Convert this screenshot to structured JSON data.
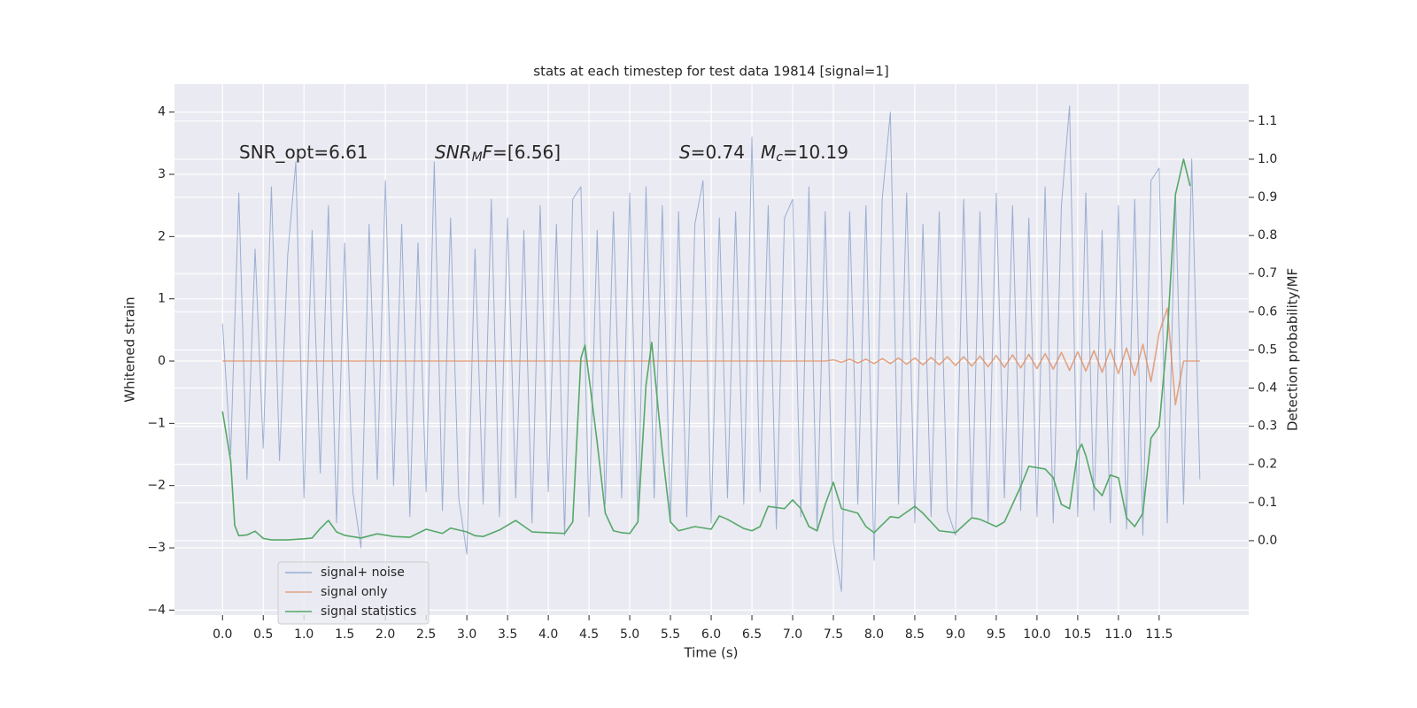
{
  "chart_data": {
    "type": "line",
    "title": "stats at each timestep for test data 19814 [signal=1]",
    "xlabel": "Time (s)",
    "ylabel": "Whitened strain",
    "y2label": "Detection probability/MF",
    "annotations": [
      [
        {
          "text": "SNR_opt=6.61"
        }
      ],
      [
        {
          "text": "SNR",
          "italic": true
        },
        {
          "text": "M",
          "italic": true,
          "sub": true
        },
        {
          "text": "F",
          "italic": true
        },
        {
          "text": "=[6.56]"
        }
      ],
      [
        {
          "text": "S",
          "italic": true
        },
        {
          "text": "=0.74"
        }
      ],
      [
        {
          "text": "M",
          "italic": true
        },
        {
          "text": "c",
          "italic": true,
          "sub": true
        },
        {
          "text": "=10.19"
        }
      ]
    ],
    "xlim": [
      -0.59,
      12.6
    ],
    "ylim": [
      -4.08,
      4.45
    ],
    "y2lim": [
      -0.195,
      1.197
    ],
    "xticks": [
      {
        "value": 0,
        "label": "0.0"
      },
      {
        "value": 0.5,
        "label": "0.5"
      },
      {
        "value": 1,
        "label": "1.0"
      },
      {
        "value": 1.5,
        "label": "1.5"
      },
      {
        "value": 2,
        "label": "2.0"
      },
      {
        "value": 2.5,
        "label": "2.5"
      },
      {
        "value": 3,
        "label": "3.0"
      },
      {
        "value": 3.5,
        "label": "3.5"
      },
      {
        "value": 4,
        "label": "4.0"
      },
      {
        "value": 4.5,
        "label": "4.5"
      },
      {
        "value": 5,
        "label": "5.0"
      },
      {
        "value": 5.5,
        "label": "5.5"
      },
      {
        "value": 6,
        "label": "6.0"
      },
      {
        "value": 6.5,
        "label": "6.5"
      },
      {
        "value": 7,
        "label": "7.0"
      },
      {
        "value": 7.5,
        "label": "7.5"
      },
      {
        "value": 8,
        "label": "8.0"
      },
      {
        "value": 8.5,
        "label": "8.5"
      },
      {
        "value": 9,
        "label": "9.0"
      },
      {
        "value": 9.5,
        "label": "9.5"
      },
      {
        "value": 10,
        "label": "10.0"
      },
      {
        "value": 10.5,
        "label": "10.5"
      },
      {
        "value": 11,
        "label": "11.0"
      },
      {
        "value": 11.5,
        "label": "11.5"
      }
    ],
    "yticks": [
      {
        "value": -4,
        "label": "−4"
      },
      {
        "value": -3,
        "label": "−3"
      },
      {
        "value": -2,
        "label": "−2"
      },
      {
        "value": -1,
        "label": "−1"
      },
      0,
      1,
      2,
      3,
      4
    ],
    "y2ticks": [
      {
        "value": 0,
        "label": "0.0"
      },
      {
        "value": 0.1,
        "label": "0.1"
      },
      {
        "value": 0.2,
        "label": "0.2"
      },
      {
        "value": 0.3,
        "label": "0.3"
      },
      {
        "value": 0.4,
        "label": "0.4"
      },
      {
        "value": 0.5,
        "label": "0.5"
      },
      {
        "value": 0.6,
        "label": "0.6"
      },
      {
        "value": 0.7,
        "label": "0.7"
      },
      {
        "value": 0.8,
        "label": "0.8"
      },
      {
        "value": 0.9,
        "label": "0.9"
      },
      {
        "value": 1,
        "label": "1.0"
      },
      {
        "value": 1.1,
        "label": "1.1"
      }
    ],
    "grid": true,
    "legend": "lower left",
    "background": "#eaeaf2",
    "x": [
      0,
      0.1,
      0.2,
      0.3,
      0.4,
      0.5,
      0.6,
      0.7,
      0.8,
      0.9,
      1,
      1.1,
      1.2,
      1.3,
      1.4,
      1.5,
      1.6,
      1.7,
      1.8,
      1.9,
      2,
      2.1,
      2.2,
      2.3,
      2.4,
      2.5,
      2.6,
      2.7,
      2.8,
      2.9,
      3,
      3.1,
      3.2,
      3.3,
      3.4,
      3.5,
      3.6,
      3.7,
      3.8,
      3.9,
      4,
      4.1,
      4.2,
      4.3,
      4.4,
      4.5,
      4.6,
      4.7,
      4.8,
      4.9,
      5,
      5.1,
      5.2,
      5.3,
      5.4,
      5.5,
      5.6,
      5.7,
      5.8,
      5.9,
      6,
      6.1,
      6.2,
      6.3,
      6.4,
      6.5,
      6.6,
      6.7,
      6.8,
      6.9,
      7,
      7.1,
      7.2,
      7.3,
      7.4,
      7.5,
      7.6,
      7.7,
      7.8,
      7.9,
      8,
      8.1,
      8.2,
      8.3,
      8.4,
      8.5,
      8.6,
      8.7,
      8.8,
      8.9,
      9,
      9.1,
      9.2,
      9.3,
      9.4,
      9.5,
      9.6,
      9.7,
      9.8,
      9.9,
      10,
      10.1,
      10.2,
      10.3,
      10.4,
      10.5,
      10.6,
      10.7,
      10.8,
      10.9,
      11,
      11.1,
      11.2,
      11.3,
      11.4,
      11.5,
      11.6,
      11.7,
      11.8,
      11.9,
      12
    ],
    "series": [
      {
        "name": "signal+ noise",
        "color": "#4c72b0",
        "opacity": 0.5,
        "values": [
          0.6,
          -1.5,
          2.7,
          -1.9,
          1.8,
          -1.4,
          2.8,
          -1.6,
          1.7,
          3.2,
          -2.2,
          2.1,
          -1.8,
          2.5,
          -2.6,
          1.9,
          -2.1,
          -3.0,
          2.2,
          -1.9,
          2.9,
          -2.0,
          2.2,
          -2.5,
          1.9,
          -2.1,
          3.2,
          -2.4,
          2.3,
          -2.2,
          -3.1,
          1.8,
          -2.3,
          2.6,
          -2.5,
          2.3,
          -2.2,
          2.1,
          -2.6,
          2.5,
          -2.1,
          2.2,
          -2.8,
          2.6,
          2.8,
          -2.5,
          2.1,
          -2.3,
          2.4,
          -2.2,
          2.7,
          -2.6,
          2.8,
          -2.2,
          2.5,
          -2.6,
          2.4,
          -2.5,
          2.2,
          2.9,
          -2.6,
          2.3,
          -2.2,
          2.4,
          -2.3,
          3.6,
          -2.1,
          2.5,
          -2.7,
          2.3,
          2.6,
          -2.5,
          2.8,
          -2.7,
          2.4,
          -2.9,
          -3.7,
          2.4,
          -2.3,
          2.5,
          -3.2,
          2.6,
          4.0,
          -2.3,
          2.7,
          -2.6,
          2.2,
          -2.5,
          2.4,
          -2.4,
          -2.8,
          2.6,
          -2.5,
          2.4,
          -2.6,
          2.7,
          -2.2,
          2.5,
          -2.4,
          2.3,
          -2.5,
          2.8,
          -2.6,
          2.5,
          4.1,
          -2.5,
          2.7,
          -2.4,
          2.1,
          -2.6,
          2.5,
          -2.7,
          2.6,
          -2.8,
          2.9,
          3.1,
          -2.6,
          2.7,
          -2.3,
          3.25,
          -1.9
        ]
      },
      {
        "name": "signal only",
        "color": "#dd8452",
        "opacity": 0.7,
        "values": [
          0,
          0,
          0,
          0,
          0,
          0,
          0,
          0,
          0,
          0,
          0,
          0,
          0,
          0,
          0,
          0,
          0,
          0,
          0,
          0,
          0,
          0,
          0,
          0,
          0,
          0,
          0,
          0,
          0,
          0,
          0,
          0,
          0,
          0,
          0,
          0,
          0,
          0,
          0,
          0,
          0,
          0,
          0,
          0,
          0,
          0,
          0,
          0,
          0,
          0,
          0,
          0,
          0,
          0,
          0,
          0,
          0,
          0,
          0,
          0,
          0,
          0,
          0,
          0,
          0,
          0,
          0,
          0,
          0,
          0,
          0,
          0,
          0,
          0,
          0,
          0.02,
          -0.02,
          0.03,
          -0.03,
          0.03,
          -0.04,
          0.04,
          -0.04,
          0.05,
          -0.05,
          0.05,
          -0.06,
          0.06,
          -0.06,
          0.07,
          -0.07,
          0.07,
          -0.08,
          0.08,
          -0.09,
          0.09,
          -0.1,
          0.1,
          -0.11,
          0.11,
          -0.12,
          0.12,
          -0.13,
          0.14,
          -0.15,
          0.15,
          -0.16,
          0.17,
          -0.18,
          0.19,
          -0.2,
          0.21,
          -0.23,
          0.27,
          -0.33,
          0.45,
          0.85,
          -0.7,
          0,
          0,
          0
        ]
      },
      {
        "name": "signal statistics",
        "color": "#55a868",
        "opacity": 1,
        "axis": "y2",
        "x": [
          0,
          0.1,
          0.15,
          0.2,
          0.3,
          0.4,
          0.5,
          0.6,
          0.8,
          1.0,
          1.1,
          1.2,
          1.3,
          1.4,
          1.5,
          1.7,
          1.9,
          2.1,
          2.3,
          2.5,
          2.7,
          2.8,
          3.0,
          3.1,
          3.2,
          3.4,
          3.6,
          3.8,
          4.0,
          4.2,
          4.3,
          4.4,
          4.45,
          4.6,
          4.7,
          4.8,
          4.9,
          5.0,
          5.1,
          5.2,
          5.27,
          5.4,
          5.5,
          5.6,
          5.8,
          6.0,
          6.1,
          6.2,
          6.4,
          6.5,
          6.6,
          6.7,
          6.9,
          7.0,
          7.1,
          7.2,
          7.3,
          7.4,
          7.5,
          7.6,
          7.8,
          7.9,
          8.0,
          8.2,
          8.3,
          8.5,
          8.6,
          8.8,
          9.0,
          9.2,
          9.3,
          9.5,
          9.6,
          9.8,
          9.9,
          10.1,
          10.2,
          10.3,
          10.4,
          10.5,
          10.55,
          10.6,
          10.7,
          10.8,
          10.9,
          11.0,
          11.1,
          11.2,
          11.3,
          11.4,
          11.5,
          11.6,
          11.7,
          11.8,
          11.88
        ],
        "values": [
          0.339,
          0.21,
          0.04,
          0.013,
          0.015,
          0.025,
          0.006,
          0.002,
          0.002,
          0.005,
          0.007,
          0.032,
          0.053,
          0.023,
          0.014,
          0.007,
          0.018,
          0.011,
          0.009,
          0.03,
          0.019,
          0.033,
          0.023,
          0.013,
          0.011,
          0.028,
          0.053,
          0.023,
          0.021,
          0.019,
          0.049,
          0.478,
          0.513,
          0.258,
          0.072,
          0.026,
          0.021,
          0.019,
          0.049,
          0.408,
          0.52,
          0.234,
          0.049,
          0.026,
          0.037,
          0.03,
          0.065,
          0.056,
          0.032,
          0.026,
          0.037,
          0.09,
          0.084,
          0.107,
          0.084,
          0.037,
          0.026,
          0.095,
          0.153,
          0.084,
          0.072,
          0.037,
          0.021,
          0.063,
          0.06,
          0.09,
          0.072,
          0.026,
          0.021,
          0.06,
          0.056,
          0.037,
          0.049,
          0.142,
          0.195,
          0.188,
          0.165,
          0.095,
          0.084,
          0.234,
          0.253,
          0.223,
          0.142,
          0.118,
          0.172,
          0.165,
          0.06,
          0.037,
          0.072,
          0.269,
          0.299,
          0.536,
          0.907,
          1.0,
          0.93
        ]
      }
    ]
  }
}
